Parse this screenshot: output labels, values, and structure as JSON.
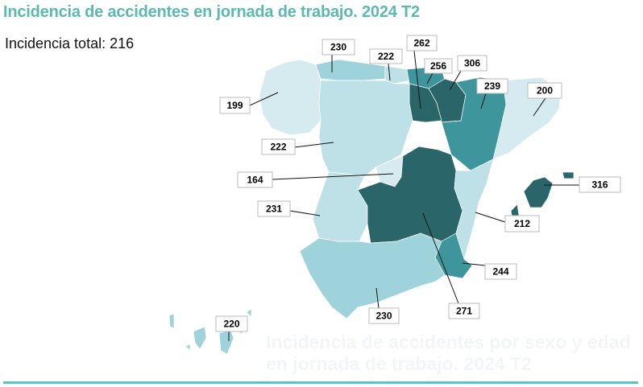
{
  "header": {
    "title": "Incidencia de accidentes en jornada de trabajo. 2024 T2",
    "ghost_title": "Incidencia de accidentes por sexo y edad en jornada de trabajo. 2024 T2",
    "total_label": "Incidencia total: 216"
  },
  "colors": {
    "title": "#5bb9b1",
    "rule": "#5bc4bf",
    "scale": [
      "#d5ebf0",
      "#bde1e7",
      "#9fd3dc",
      "#3f959c",
      "#2a6569"
    ]
  },
  "map": {
    "regions": [
      {
        "id": "galicia",
        "value": "199",
        "level": 0
      },
      {
        "id": "asturias",
        "value": "230",
        "level": 2
      },
      {
        "id": "cantabria",
        "value": "222",
        "level": 1
      },
      {
        "id": "pais-vasco",
        "value": "256",
        "level": 3
      },
      {
        "id": "navarra",
        "value": "306",
        "level": 4
      },
      {
        "id": "la-rioja",
        "value": "262",
        "level": 4
      },
      {
        "id": "aragon",
        "value": "239",
        "level": 3
      },
      {
        "id": "cataluna",
        "value": "200",
        "level": 0
      },
      {
        "id": "castilla-leon",
        "value": "222",
        "level": 1
      },
      {
        "id": "madrid",
        "value": "164",
        "level": 0
      },
      {
        "id": "extremadura",
        "value": "231",
        "level": 1
      },
      {
        "id": "castilla-la-mancha",
        "value": "271",
        "level": 4
      },
      {
        "id": "valencia",
        "value": "212",
        "level": 1
      },
      {
        "id": "murcia",
        "value": "244",
        "level": 3
      },
      {
        "id": "andalucia",
        "value": "230",
        "level": 2
      },
      {
        "id": "baleares",
        "value": "316",
        "level": 4
      },
      {
        "id": "canarias",
        "value": "220",
        "level": 2
      }
    ]
  }
}
